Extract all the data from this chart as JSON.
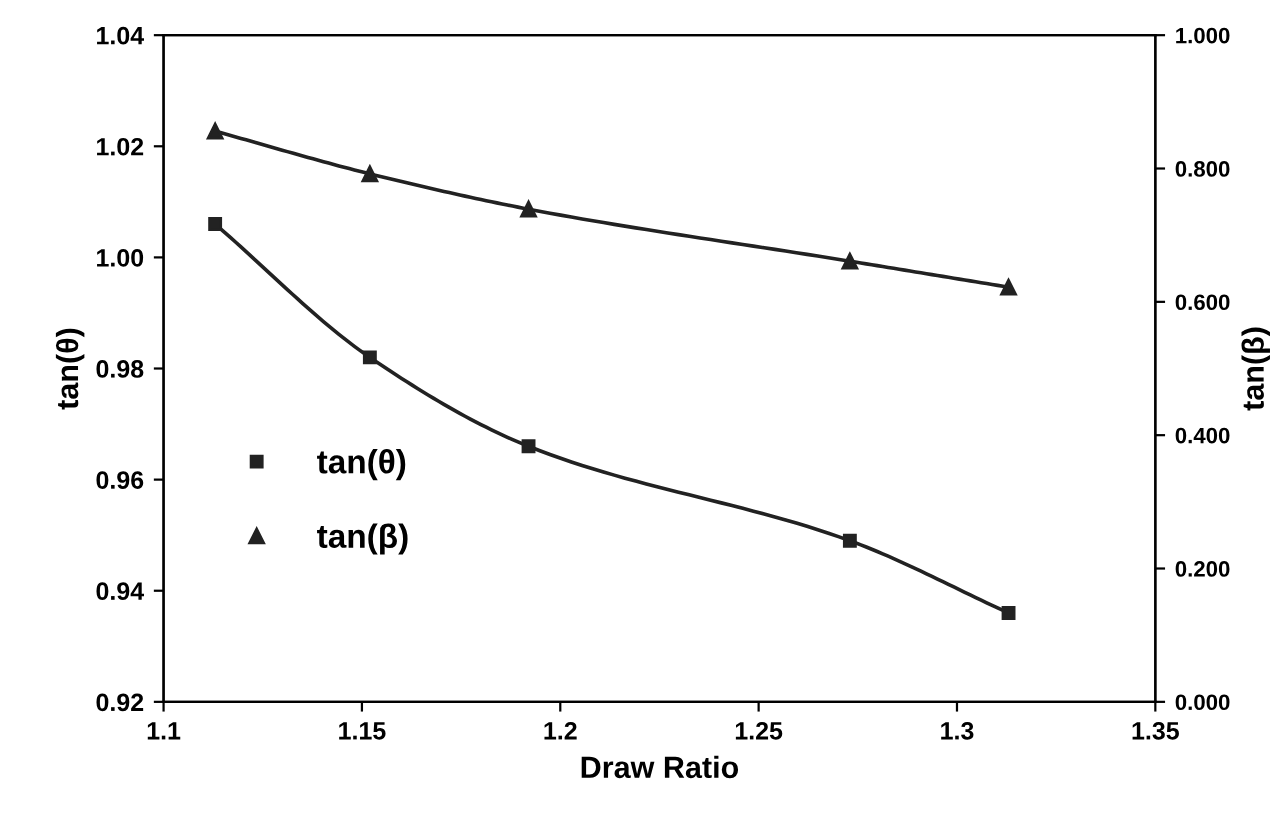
{
  "chart_data": {
    "type": "line",
    "xlabel": "Draw Ratio",
    "ylabel": "tan(θ)",
    "y2label": "tan(β)",
    "x": [
      1.113,
      1.152,
      1.192,
      1.273,
      1.313
    ],
    "series": [
      {
        "name": "tan(θ)",
        "color": "#222222",
        "marker": "square",
        "values": [
          1.006,
          0.982,
          0.966,
          0.949,
          0.936
        ]
      },
      {
        "name": "tan(β)",
        "color": "#222222",
        "marker": "triangle",
        "axis": "y2",
        "values": [
          0.856,
          0.792,
          0.739,
          0.661,
          0.622
        ]
      }
    ],
    "xlim": [
      1.1,
      1.35
    ],
    "xticks": [
      1.1,
      1.15,
      1.2,
      1.25,
      1.3,
      1.35
    ],
    "ylim": [
      0.92,
      1.04
    ],
    "yticks": [
      {
        "value": 0.92,
        "label": "0.92"
      },
      {
        "value": 0.94,
        "label": "0.94"
      },
      {
        "value": 0.96,
        "label": "0.96"
      },
      {
        "value": 0.98,
        "label": "0.98"
      },
      {
        "value": 1.0,
        "label": "1.00"
      },
      {
        "value": 1.02,
        "label": "1.02"
      },
      {
        "value": 1.04,
        "label": "1.04"
      }
    ],
    "y2lim": [
      0,
      1
    ],
    "y2ticks": [
      {
        "value": 0,
        "label": "0.000"
      },
      {
        "value": 0.2,
        "label": "0.200"
      },
      {
        "value": 0.4,
        "label": "0.400"
      },
      {
        "value": 0.6,
        "label": "0.600"
      },
      {
        "value": 0.8,
        "label": "0.800"
      },
      {
        "value": 1.0,
        "label": "1.000"
      }
    ],
    "legend": "left",
    "grid": false,
    "line_style": "solid"
  }
}
